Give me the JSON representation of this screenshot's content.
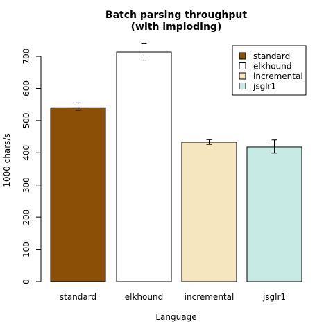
{
  "chart_data": {
    "type": "bar",
    "title": [
      "Batch parsing throughput",
      "(with imploding)"
    ],
    "xlabel": "Language",
    "ylabel": "1000 chars/s",
    "categories": [
      "standard",
      "elkhound",
      "incremental",
      "jsglr1"
    ],
    "values": [
      540,
      713,
      433,
      418
    ],
    "error_bars": [
      [
        532,
        555
      ],
      [
        688,
        740
      ],
      [
        426,
        441
      ],
      [
        399,
        440
      ]
    ],
    "colors": [
      "#8B5006",
      "#FFFFFF",
      "#F5E6C0",
      "#C7EAE4"
    ],
    "yticks": [
      0,
      100,
      200,
      300,
      400,
      500,
      600,
      700
    ],
    "ylim": [
      0,
      713
    ],
    "legend": {
      "placement": "top-right",
      "entries": [
        "standard",
        "elkhound",
        "incremental",
        "jsglr1"
      ]
    }
  }
}
